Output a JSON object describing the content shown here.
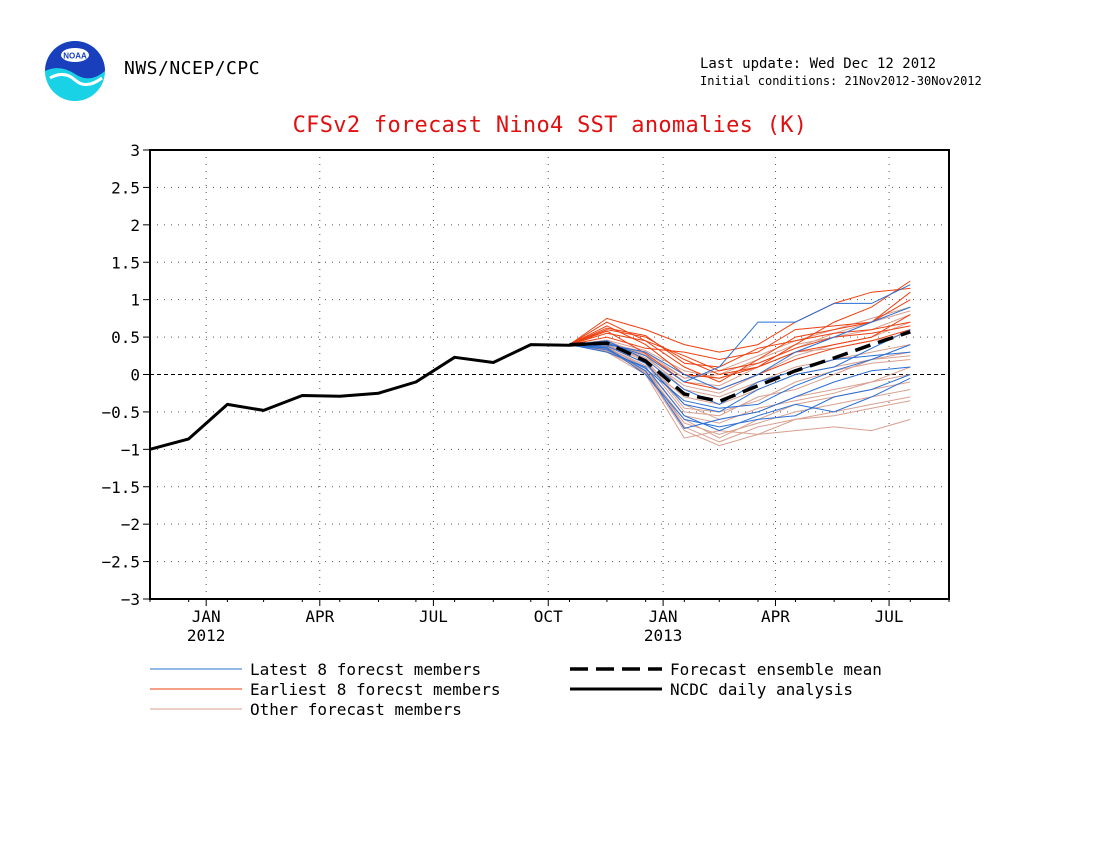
{
  "header": {
    "org": "NWS/NCEP/CPC",
    "last_update": "Last update: Wed Dec 12 2012",
    "initial_conditions": "Initial conditions: 21Nov2012-30Nov2012",
    "logo_text": "NOAA"
  },
  "chart_data": {
    "type": "line",
    "title": "CFSv2 forecast Nino4 SST anomalies (K)",
    "xlabel": "",
    "ylabel": "",
    "ylim": [
      -3,
      3
    ],
    "yticks": [
      -3,
      -2.5,
      -2,
      -1.5,
      -1,
      -0.5,
      0,
      0.5,
      1,
      1.5,
      2,
      2.5,
      3
    ],
    "ytick_labels": [
      "−3",
      "−2.5",
      "−2",
      "−1.5",
      "−1",
      "−0.5",
      "0",
      "0.5",
      "1",
      "1.5",
      "2",
      "2.5",
      "3"
    ],
    "xlim": [
      "2011-12-01",
      "2013-09-01"
    ],
    "xticks": [
      {
        "date": "2012-01-15",
        "label": "JAN",
        "year": "2012"
      },
      {
        "date": "2012-04-15",
        "label": "APR",
        "year": ""
      },
      {
        "date": "2012-07-15",
        "label": "JUL",
        "year": ""
      },
      {
        "date": "2012-10-15",
        "label": "OCT",
        "year": ""
      },
      {
        "date": "2013-01-15",
        "label": "JAN",
        "year": "2013"
      },
      {
        "date": "2013-04-15",
        "label": "APR",
        "year": ""
      },
      {
        "date": "2013-07-15",
        "label": "JUL",
        "year": ""
      }
    ],
    "grid": true,
    "zero_line": true,
    "colors": {
      "latest": "#2a6fd6",
      "earliest": "#ee4010",
      "other": "#d8a090",
      "mean": "#000000",
      "analysis": "#000000",
      "title": "#e01010"
    },
    "analysis": {
      "name": "NCDC daily analysis",
      "x": [
        "2011-12-01",
        "2012-01-01",
        "2012-02-01",
        "2012-03-01",
        "2012-04-01",
        "2012-05-01",
        "2012-06-01",
        "2012-07-01",
        "2012-08-01",
        "2012-09-01",
        "2012-10-01",
        "2012-11-01",
        "2012-11-27"
      ],
      "y": [
        -1.0,
        -0.86,
        -0.4,
        -0.48,
        -0.28,
        -0.29,
        -0.25,
        -0.1,
        0.23,
        0.16,
        0.4,
        0.39,
        0.42
      ]
    },
    "ensemble_mean": {
      "name": "Forecast ensemble mean",
      "x": [
        "2012-11-01",
        "2012-12-01",
        "2013-01-01",
        "2013-02-01",
        "2013-03-01",
        "2013-04-01",
        "2013-05-01",
        "2013-06-01",
        "2013-07-01",
        "2013-08-01"
      ],
      "y": [
        0.4,
        0.42,
        0.18,
        -0.26,
        -0.36,
        -0.15,
        0.05,
        0.22,
        0.4,
        0.57
      ]
    },
    "forecast_x": [
      "2012-11-01",
      "2012-12-01",
      "2013-01-01",
      "2013-02-01",
      "2013-03-01",
      "2013-04-01",
      "2013-05-01",
      "2013-06-01",
      "2013-07-01",
      "2013-08-01"
    ],
    "members_latest": [
      [
        0.4,
        0.35,
        0.05,
        -0.72,
        -0.6,
        -0.5,
        -0.3,
        -0.1,
        0.05,
        0.1
      ],
      [
        0.4,
        0.3,
        0.1,
        -0.55,
        -0.75,
        -0.55,
        -0.4,
        -0.5,
        -0.3,
        -0.05
      ],
      [
        0.4,
        0.45,
        0.2,
        -0.2,
        -0.4,
        -0.1,
        0.05,
        0.2,
        0.25,
        0.3
      ],
      [
        0.4,
        0.4,
        0.3,
        0.0,
        -0.2,
        0.0,
        0.3,
        0.5,
        0.7,
        0.9
      ],
      [
        0.4,
        0.38,
        0.15,
        -0.4,
        -0.5,
        -0.2,
        0.0,
        0.1,
        0.35,
        0.6
      ],
      [
        0.4,
        0.42,
        0.25,
        -0.1,
        0.1,
        0.7,
        0.7,
        0.95,
        0.95,
        1.2
      ],
      [
        0.4,
        0.36,
        0.0,
        -0.6,
        -0.7,
        -0.6,
        -0.55,
        -0.3,
        -0.2,
        0.0
      ],
      [
        0.4,
        0.33,
        0.08,
        -0.35,
        -0.45,
        -0.4,
        -0.15,
        0.05,
        0.2,
        0.4
      ]
    ],
    "members_earliest": [
      [
        0.4,
        0.75,
        0.6,
        0.4,
        0.3,
        0.4,
        0.7,
        0.95,
        1.1,
        1.15
      ],
      [
        0.4,
        0.6,
        0.5,
        0.2,
        0.0,
        0.1,
        0.4,
        0.7,
        0.9,
        1.25
      ],
      [
        0.4,
        0.55,
        0.45,
        0.1,
        -0.1,
        0.2,
        0.5,
        0.6,
        0.7,
        1.1
      ],
      [
        0.4,
        0.65,
        0.4,
        0.0,
        -0.05,
        0.1,
        0.3,
        0.4,
        0.5,
        0.8
      ],
      [
        0.4,
        0.5,
        0.35,
        0.3,
        0.2,
        0.3,
        0.6,
        0.65,
        0.7,
        1.0
      ],
      [
        0.4,
        0.58,
        0.28,
        -0.1,
        -0.2,
        0.0,
        0.2,
        0.35,
        0.45,
        0.6
      ],
      [
        0.4,
        0.62,
        0.52,
        0.15,
        0.1,
        0.35,
        0.45,
        0.55,
        0.6,
        0.7
      ],
      [
        0.4,
        0.7,
        0.45,
        0.25,
        0.05,
        0.15,
        0.35,
        0.5,
        0.55,
        0.65
      ]
    ],
    "members_other": [
      [
        0.4,
        0.35,
        0.1,
        -0.7,
        -0.9,
        -0.7,
        -0.6,
        -0.5,
        -0.4,
        -0.3
      ],
      [
        0.4,
        0.3,
        0.0,
        -0.85,
        -0.75,
        -0.8,
        -0.75,
        -0.7,
        -0.75,
        -0.6
      ],
      [
        0.4,
        0.4,
        0.2,
        -0.4,
        -0.6,
        -0.5,
        -0.3,
        -0.2,
        -0.1,
        0.0
      ],
      [
        0.4,
        0.45,
        0.25,
        -0.2,
        -0.3,
        -0.1,
        0.1,
        0.2,
        0.3,
        0.4
      ],
      [
        0.4,
        0.38,
        0.15,
        -0.5,
        -0.55,
        -0.3,
        -0.2,
        0.0,
        0.2,
        0.3
      ],
      [
        0.4,
        0.42,
        0.3,
        -0.05,
        0.0,
        0.2,
        0.4,
        0.5,
        0.6,
        0.8
      ],
      [
        0.4,
        0.32,
        0.05,
        -0.6,
        -0.85,
        -0.6,
        -0.4,
        -0.3,
        -0.2,
        -0.1
      ],
      [
        0.4,
        0.36,
        0.12,
        -0.3,
        -0.4,
        -0.2,
        0.0,
        0.1,
        0.2,
        0.25
      ],
      [
        0.4,
        0.44,
        0.22,
        -0.15,
        -0.25,
        0.0,
        0.25,
        0.4,
        0.5,
        0.7
      ],
      [
        0.4,
        0.34,
        0.02,
        -0.75,
        -0.95,
        -0.8,
        -0.6,
        -0.55,
        -0.45,
        -0.35
      ],
      [
        0.4,
        0.39,
        0.18,
        -0.45,
        -0.5,
        -0.35,
        -0.1,
        0.05,
        0.15,
        0.2
      ],
      [
        0.4,
        0.41,
        0.28,
        -0.1,
        -0.15,
        0.1,
        0.3,
        0.35,
        0.45,
        0.55
      ],
      [
        0.4,
        0.37,
        0.08,
        -0.55,
        -0.65,
        -0.45,
        -0.35,
        -0.25,
        -0.1,
        0.1
      ],
      [
        0.4,
        0.43,
        0.26,
        -0.05,
        0.05,
        0.25,
        0.45,
        0.6,
        0.75,
        0.9
      ],
      [
        0.4,
        0.31,
        0.04,
        -0.65,
        -0.8,
        -0.65,
        -0.5,
        -0.4,
        -0.3,
        -0.2
      ],
      [
        0.4,
        0.46,
        0.32,
        0.05,
        -0.05,
        0.15,
        0.35,
        0.55,
        0.7,
        0.85
      ]
    ],
    "legend": {
      "position": "bottom",
      "items": [
        {
          "key": "latest",
          "label": "Latest 8 forecst members",
          "style": "thin-blue"
        },
        {
          "key": "earliest",
          "label": "Earliest 8 forecst members",
          "style": "thin-orange"
        },
        {
          "key": "other",
          "label": "Other forecast members",
          "style": "thin-pink"
        },
        {
          "key": "mean",
          "label": "Forecast ensemble mean",
          "style": "thick-dashed-black"
        },
        {
          "key": "analysis",
          "label": "NCDC daily analysis",
          "style": "thick-solid-black"
        }
      ]
    }
  }
}
